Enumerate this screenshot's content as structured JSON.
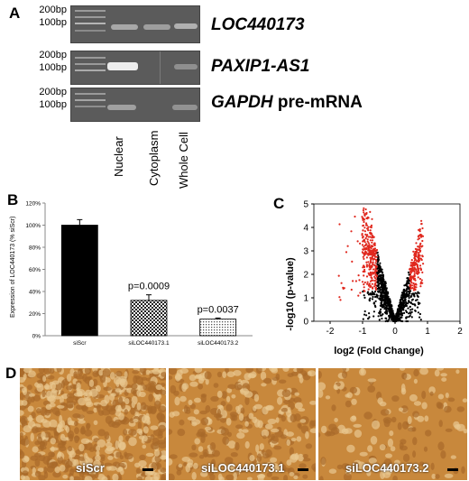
{
  "panelA": {
    "letter": "A",
    "size_labels": {
      "top": "200bp",
      "bottom": "100bp"
    },
    "genes": {
      "gene1": "LOC440173",
      "gene2": "PAXIP1-AS1",
      "gene3_italic": "GAPDH",
      "gene3_plain": "pre-mRNA"
    },
    "lanes": [
      "Nuclear",
      "Cytoplasm",
      "Whole Cell"
    ]
  },
  "panelB": {
    "letter": "B",
    "pvals": {
      "p1": "p=0.0009",
      "p2": "p=0.0037"
    }
  },
  "panelC": {
    "letter": "C"
  },
  "panelD": {
    "letter": "D",
    "labels": [
      "siScr",
      "siLOC440173.1",
      "siLOC440173.2"
    ]
  },
  "colors": {
    "gel_bg": "#5b5b5b",
    "volcano_sig": "#e0281e",
    "micro_bg": "#c8883c"
  },
  "chart_data": [
    {
      "type": "bar",
      "ylabel": "Expression of LOC440173 (% siScr)",
      "categories": [
        "siScr",
        "siLOC440173.1",
        "siLOC440173.2"
      ],
      "values": [
        100,
        32,
        15
      ],
      "errors": [
        5,
        5,
        1
      ],
      "annotations": [
        "",
        "p=0.0009",
        "p=0.0037"
      ],
      "yticks": [
        "0%",
        "20%",
        "40%",
        "60%",
        "80%",
        "100%",
        "120%"
      ],
      "ylim": [
        0,
        120
      ],
      "bar_fills": [
        "solid-black",
        "checkered",
        "dotted"
      ]
    },
    {
      "type": "scatter",
      "xlabel": "log2 (Fold Change)",
      "ylabel": "-log10 (p-value)",
      "xlim": [
        -2.5,
        2
      ],
      "ylim": [
        0,
        5
      ],
      "xticks": [
        "-2",
        "-1",
        "0",
        "1",
        "2"
      ],
      "yticks": [
        "0",
        "1",
        "2",
        "3",
        "4",
        "5"
      ],
      "series": [
        {
          "color": "#000000"
        },
        {
          "color": "#e0281e"
        }
      ]
    }
  ]
}
